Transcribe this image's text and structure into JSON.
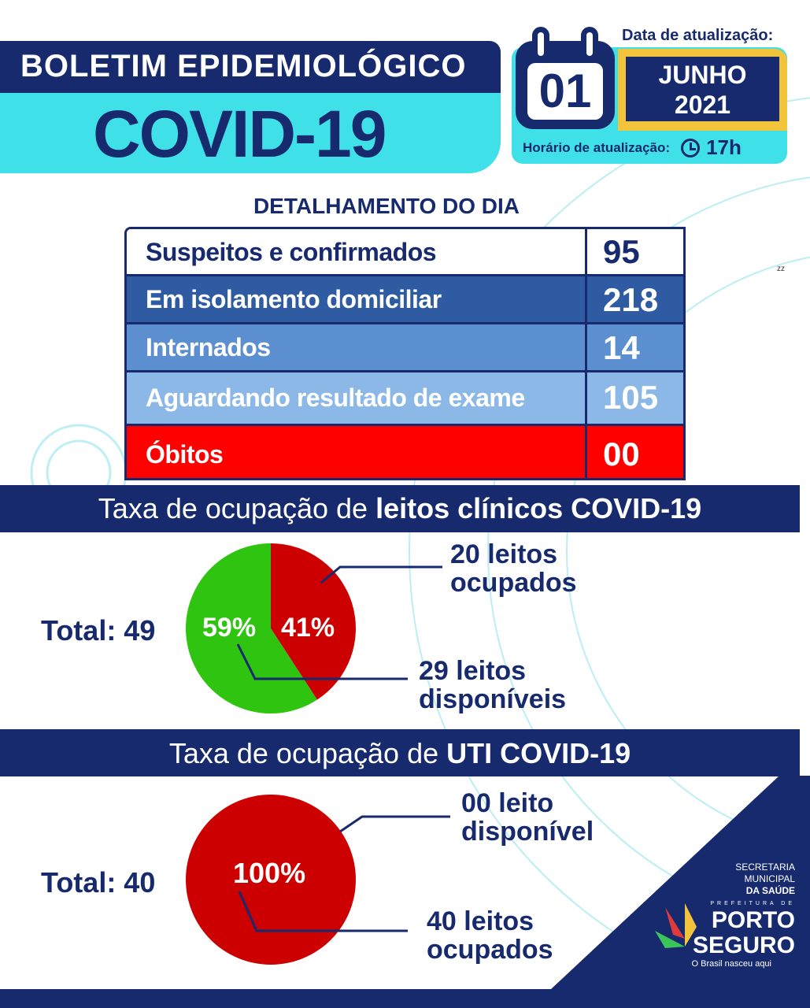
{
  "header": {
    "title_line1": "BOLETIM EPIDEMIOLÓGICO",
    "title_line2": "COVID-19"
  },
  "update": {
    "date_label": "Data de atualização:",
    "day": "01",
    "month": "JUNHO",
    "year": "2021",
    "time_label": "Horário de atualização:",
    "time": "17h",
    "clock_icon": "clock-icon",
    "calendar_icon": "calendar-icon"
  },
  "details": {
    "title": "DETALHAMENTO DO DIA",
    "rows": [
      {
        "label": "Suspeitos e confirmados",
        "value": "95",
        "color": "#ffffff"
      },
      {
        "label": "Em isolamento domiciliar",
        "value": "218",
        "color": "#2f5ba3"
      },
      {
        "label": "Internados",
        "value": "14",
        "color": "#5b8fd0"
      },
      {
        "label": "Aguardando resultado de exame",
        "value": "105",
        "color": "#8cb8e8"
      },
      {
        "label": "Óbitos",
        "value": "00",
        "color": "#ff0000"
      }
    ]
  },
  "stray_text": "zz",
  "clinical": {
    "title_prefix": "Taxa de ocupação de ",
    "title_bold": "leitos clínicos COVID-19",
    "total": "Total: 49",
    "occupied_label": "20 leitos ocupados",
    "available_label": "29 leitos disponíveis",
    "pct_occupied": "41%",
    "pct_available": "59%"
  },
  "icu": {
    "title_prefix": "Taxa de ocupação de ",
    "title_bold": "UTI COVID-19",
    "total": "Total: 40",
    "available_label": "00 leito disponível",
    "occupied_label": "40 leitos ocupados",
    "pct_occupied": "100%"
  },
  "logo": {
    "line1": "SECRETARIA",
    "line2": "MUNICIPAL",
    "line3": "DA SAÚDE",
    "prefeitura": "PREFEITURA DE",
    "city1": "PORTO",
    "city2": "SEGURO",
    "slogan": "O Brasil nasceu aqui"
  },
  "colors": {
    "navy": "#172a6e",
    "cyan": "#3fe0e8",
    "yellow": "#f2c43c",
    "occupied": "#cc0000",
    "available": "#2ec40f"
  },
  "chart_data": [
    {
      "type": "pie",
      "title": "Taxa de ocupação de leitos clínicos COVID-19",
      "categories": [
        "ocupados",
        "disponíveis"
      ],
      "values": [
        20,
        29
      ],
      "percent": [
        41,
        59
      ],
      "total": 49
    },
    {
      "type": "pie",
      "title": "Taxa de ocupação de UTI COVID-19",
      "categories": [
        "ocupados",
        "disponível"
      ],
      "values": [
        40,
        0
      ],
      "percent": [
        100,
        0
      ],
      "total": 40
    }
  ]
}
